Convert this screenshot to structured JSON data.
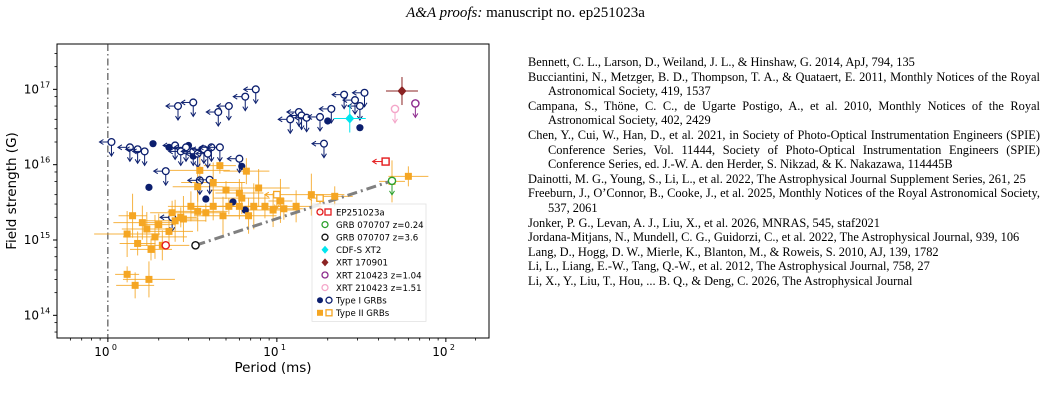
{
  "header": {
    "journal": "A&A proofs:",
    "manuscript": "manuscript no. ep251023a"
  },
  "chart_data": {
    "type": "scatter",
    "title": "",
    "xlabel": "Period (ms)",
    "ylabel": "Field strength (G)",
    "xscale": "log",
    "yscale": "log",
    "xlim": [
      0.5,
      180
    ],
    "ylim": [
      5e-05,
      0.4
    ],
    "x_ticks": [
      {
        "v": 1,
        "t": "10"
      },
      {
        "v": 10,
        "t": "10"
      },
      {
        "v": 100,
        "t": "10"
      }
    ],
    "x_tick_exp": [
      "0",
      "1",
      "2"
    ],
    "y_ticks": [
      {
        "v": 0.0001,
        "t": "10"
      },
      {
        "v": 0.001,
        "t": "10"
      },
      {
        "v": 0.01,
        "t": "10"
      },
      {
        "v": 0.1,
        "t": "10"
      }
    ],
    "y_tick_exp": [
      "14",
      "15",
      "16",
      "17"
    ],
    "y_unit_scale": "in units of 1e18 G",
    "vline_x": 1.0,
    "legend_position": "lower-right",
    "legend": [
      {
        "label": "EP251023a",
        "marker": "ring-square",
        "color": "#e41a1c"
      },
      {
        "label": "GRB 070707 z=0.24",
        "marker": "ring",
        "color": "#2ca02c"
      },
      {
        "label": "GRB 070707 z=3.6",
        "marker": "ring",
        "color": "#111111"
      },
      {
        "label": "CDF-S XT2",
        "marker": "diamond",
        "color": "#00e5ee"
      },
      {
        "label": "XRT 170901",
        "marker": "diamond",
        "color": "#8b2323"
      },
      {
        "label": "XRT 210423 z=1.04",
        "marker": "ring",
        "color": "#8e2c8e"
      },
      {
        "label": "XRT 210423 z=1.51",
        "marker": "ring",
        "color": "#f4a6c9"
      },
      {
        "label": "Type I GRBs",
        "marker": "dot-ring",
        "color": "#0b1e6e"
      },
      {
        "label": "Type II GRBs",
        "marker": "square-open",
        "color": "#f5a623"
      }
    ],
    "colors": {
      "typeI": "#0b1e6e",
      "typeII": "#f5a623",
      "trend": "#808080"
    },
    "series": [
      {
        "name": "Type I GRBs",
        "kind": "filled",
        "points": [
          [
            1.75,
            0.005
          ],
          [
            1.85,
            0.019
          ],
          [
            2.3,
            0.017
          ],
          [
            3.2,
            0.013
          ],
          [
            3.5,
            0.006
          ],
          [
            3.8,
            0.0035
          ],
          [
            5.5,
            0.0032
          ],
          [
            6.5,
            0.0025
          ],
          [
            6.2,
            0.0095
          ],
          [
            20,
            0.038
          ],
          [
            31,
            0.031
          ],
          [
            3.6,
            0.016
          ],
          [
            3,
            0.018
          ]
        ]
      },
      {
        "name": "Type I GRBs (upper limits)",
        "kind": "open-limit",
        "points": [
          [
            1.05,
            0.02
          ],
          [
            1.35,
            0.017
          ],
          [
            1.5,
            0.016
          ],
          [
            1.65,
            0.015
          ],
          [
            2.5,
            0.018
          ],
          [
            2.7,
            0.015
          ],
          [
            2.9,
            0.017
          ],
          [
            3.2,
            0.015
          ],
          [
            3.4,
            0.014
          ],
          [
            3.7,
            0.016
          ],
          [
            3.9,
            0.014
          ],
          [
            4.1,
            0.017
          ],
          [
            4.6,
            0.017
          ],
          [
            2.6,
            0.06
          ],
          [
            3.2,
            0.067
          ],
          [
            4.5,
            0.05
          ],
          [
            5.2,
            0.06
          ],
          [
            6.5,
            0.08
          ],
          [
            7.5,
            0.1
          ],
          [
            12,
            0.04
          ],
          [
            13.5,
            0.05
          ],
          [
            14,
            0.045
          ],
          [
            15,
            0.042
          ],
          [
            18,
            0.043
          ],
          [
            21,
            0.055
          ],
          [
            25,
            0.085
          ],
          [
            29,
            0.072
          ],
          [
            31,
            0.06
          ],
          [
            33,
            0.09
          ],
          [
            6,
            0.012
          ],
          [
            3.5,
            0.0062
          ],
          [
            4,
            0.0063
          ],
          [
            19,
            0.019
          ],
          [
            2.4,
            0.002
          ],
          [
            2.2,
            0.0082
          ]
        ]
      },
      {
        "name": "Type II GRBs",
        "kind": "filled",
        "points": [
          [
            1.3,
            0.00035
          ],
          [
            1.45,
            0.00025
          ],
          [
            1.75,
            0.0003
          ],
          [
            1.3,
            0.0012
          ],
          [
            1.5,
            0.0009
          ],
          [
            1.7,
            0.0014
          ],
          [
            1.9,
            0.0011
          ],
          [
            2,
            0.0016
          ],
          [
            2.3,
            0.0013
          ],
          [
            2.5,
            0.0018
          ],
          [
            2.7,
            0.002
          ],
          [
            3.1,
            0.0028
          ],
          [
            3.4,
            0.0024
          ],
          [
            3.8,
            0.0023
          ],
          [
            4.2,
            0.0028
          ],
          [
            4.8,
            0.0021
          ],
          [
            5.2,
            0.0028
          ],
          [
            6,
            0.0028
          ],
          [
            6.8,
            0.0021
          ],
          [
            7.3,
            0.0028
          ],
          [
            8.5,
            0.0028
          ],
          [
            9.5,
            0.0025
          ],
          [
            10.5,
            0.0033
          ],
          [
            11,
            0.0026
          ],
          [
            13,
            0.0028
          ],
          [
            16,
            0.004
          ],
          [
            22,
            0.0038
          ],
          [
            3.4,
            0.0051
          ],
          [
            4.2,
            0.0058
          ],
          [
            5,
            0.0046
          ],
          [
            6,
            0.0042
          ],
          [
            7.8,
            0.0049
          ],
          [
            4.6,
            0.0097
          ],
          [
            6.6,
            0.0082
          ],
          [
            3.5,
            0.0084
          ],
          [
            2.8,
            0.0019
          ],
          [
            2.4,
            0.0023
          ],
          [
            1.6,
            0.0017
          ],
          [
            1.4,
            0.0021
          ],
          [
            1.8,
            0.00075
          ],
          [
            6.2,
            0.0036
          ],
          [
            48,
            0.006
          ],
          [
            60,
            0.007
          ],
          [
            2.1,
            0.00085
          ]
        ]
      },
      {
        "name": "Type II GRBs (upper limits)",
        "kind": "open-limit",
        "points": [
          [
            18,
            0.0036
          ],
          [
            10,
            0.004
          ]
        ]
      }
    ],
    "special": [
      {
        "label": "EP251023a",
        "points": [
          [
            2.2,
            0.00085
          ],
          [
            44,
            0.011
          ]
        ]
      },
      {
        "label": "GRB 070707 z=0.24",
        "points": [
          [
            48,
            0.0061
          ]
        ]
      },
      {
        "label": "GRB 070707 z=3.6",
        "points": [
          [
            3.3,
            0.00085
          ]
        ]
      },
      {
        "label": "CDF-S XT2",
        "points": [
          [
            27,
            0.041
          ]
        ]
      },
      {
        "label": "XRT 170901",
        "points": [
          [
            55,
            0.095
          ]
        ]
      },
      {
        "label": "XRT 210423 z=1.04",
        "points": [
          [
            66,
            0.065
          ]
        ]
      },
      {
        "label": "XRT 210423 z=1.51",
        "points": [
          [
            50,
            0.055
          ]
        ]
      }
    ],
    "trend_line": [
      [
        3.3,
        0.00085
      ],
      [
        48,
        0.0061
      ]
    ]
  },
  "references": [
    "Bennett, C. L., Larson, D., Weiland, J. L., & Hinshaw, G. 2014, ApJ, 794, 135",
    "Bucciantini, N., Metzger, B. D., Thompson, T. A., & Quataert, E. 2011, Monthly Notices of the Royal Astronomical Society, 419, 1537",
    "Campana, S., Thöne, C. C., de Ugarte Postigo, A., et al. 2010, Monthly Notices of the Royal Astronomical Society, 402, 2429",
    "Chen, Y., Cui, W., Han, D., et al. 2021, in Society of Photo-Optical Instrumentation Engineers (SPIE) Conference Series, Vol. 11444, Society of Photo-Optical Instrumentation Engineers (SPIE) Conference Series, ed. J.-W. A. den Herder, S. Nikzad, & K. Nakazawa, 114445B",
    "Dainotti, M. G., Young, S., Li, L., et al. 2022, The Astrophysical Journal Supplement Series, 261, 25",
    "Freeburn, J., O’Connor, B., Cooke, J., et al. 2025, Monthly Notices of the Royal Astronomical Society, 537, 2061",
    "Jonker, P. G., Levan, A. J., Liu, X., et al. 2026, MNRAS, 545, staf2021",
    "Jordana-Mitjans, N., Mundell, C. G., Guidorzi, C., et al. 2022, The Astrophysical Journal, 939, 106",
    "Lang, D., Hogg, D. W., Mierle, K., Blanton, M., & Roweis, S. 2010, AJ, 139, 1782",
    "Li, L., Liang, E.-W., Tang, Q.-W., et al. 2012, The Astrophysical Journal, 758, 27",
    "Li, X., Y., Liu, T., Hou, ... B. Q., & Deng, C. 2026, The Astrophysical Journal"
  ]
}
